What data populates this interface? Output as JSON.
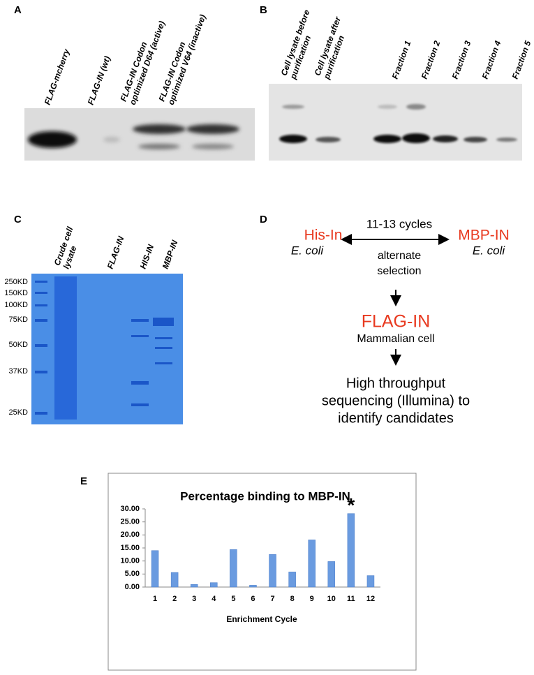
{
  "panels": {
    "a": {
      "label": "A",
      "lanes": [
        [
          "FLAG-mcherry"
        ],
        [
          "FLAG-IN (wt)"
        ],
        [
          "FLAG-IN Codon",
          "optimized D64 (active)"
        ],
        [
          "FLAG-IN Codon",
          "optimized V64 (inactive)"
        ]
      ]
    },
    "b": {
      "label": "B",
      "lanes": [
        [
          "Cell lysate before",
          "purification"
        ],
        [
          "Cell lysate after",
          "purification"
        ],
        [
          "Fraction 1"
        ],
        [
          "Fraction 2"
        ],
        [
          "Fraction 3"
        ],
        [
          "Fraction 4"
        ],
        [
          "Fraction 5"
        ]
      ]
    },
    "c": {
      "label": "C",
      "lanes": [
        [
          "Crude cell",
          "lysate"
        ],
        [
          "FLAG-IN"
        ],
        [
          "HIS-IN"
        ],
        [
          "MBP-IN"
        ]
      ],
      "markers": [
        "250KD",
        "150KD",
        "100KD",
        "75KD",
        "50KD",
        "37KD",
        "25KD"
      ]
    },
    "d": {
      "label": "D",
      "left": {
        "name": "His-In",
        "host": "E. coli"
      },
      "right": {
        "name": "MBP-IN",
        "host": "E. coli"
      },
      "cycles": "11-13 cycles",
      "selection": [
        "alternate",
        "selection"
      ],
      "middle": {
        "name": "FLAG-IN",
        "host": "Mammalian cell"
      },
      "result": [
        "High throughput",
        "sequencing (Illumina) to",
        "identify candidates"
      ]
    }
  },
  "chart_data": {
    "type": "bar",
    "panel_label": "E",
    "title": "Percentage binding to MBP-IN",
    "x_label": "Enrichment Cycle",
    "categories": [
      "1",
      "2",
      "3",
      "4",
      "5",
      "6",
      "7",
      "8",
      "9",
      "10",
      "11",
      "12"
    ],
    "values": [
      14.0,
      5.6,
      1.0,
      1.7,
      14.4,
      0.7,
      12.5,
      5.8,
      18.1,
      9.8,
      28.2,
      4.4
    ],
    "color": "#6a9be0",
    "ylim": [
      0,
      30
    ],
    "yticks": [
      {
        "value": 0,
        "label": "0.00"
      },
      {
        "value": 5,
        "label": "5.00"
      },
      {
        "value": 10,
        "label": "10.00"
      },
      {
        "value": 15,
        "label": "15.00"
      },
      {
        "value": 20,
        "label": "20.00"
      },
      {
        "value": 25,
        "label": "25.00"
      },
      {
        "value": 30,
        "label": "30.00"
      }
    ],
    "annotation": "*"
  }
}
